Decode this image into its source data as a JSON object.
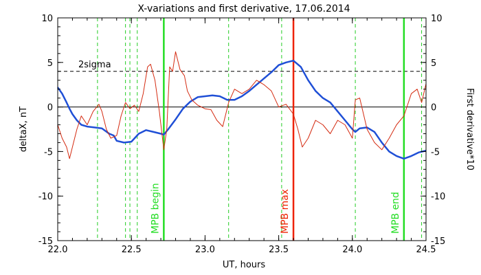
{
  "chart_data": {
    "type": "line",
    "title": "X-variations and first derivative, 17.06.2014",
    "xlabel": "UT, hours",
    "ylabel_left": "deltaX, nT",
    "ylabel_right": "First derivative*10",
    "xlim": [
      22.0,
      24.5
    ],
    "ylim": [
      -15,
      10
    ],
    "x_ticks": [
      "22.0",
      "22.5",
      "23.0",
      "23.5",
      "24.0",
      "24.5"
    ],
    "x_tick_values": [
      22.0,
      22.5,
      23.0,
      23.5,
      24.0,
      24.5
    ],
    "y_ticks": [
      "10",
      "5",
      "0",
      "-5",
      "-10",
      "-15"
    ],
    "y_tick_values": [
      10,
      5,
      0,
      -5,
      -10,
      -15
    ],
    "colors": {
      "deltaX": "#1f4fd6",
      "derivative": "#d42a10",
      "mpb_begin_end": "#22dd22",
      "mpb_max": "#ee2200",
      "dashed_green": "#22cc22"
    },
    "threshold": {
      "label": "2sigma",
      "value": 4
    },
    "zero_line": 0,
    "dashed_green_lines": [
      22.27,
      22.46,
      22.49,
      22.54,
      23.16,
      23.52,
      24.02,
      24.47
    ],
    "vertical_markers": [
      {
        "label": "MPB begin",
        "x": 22.72,
        "kind": "begin_end"
      },
      {
        "label": "MPB max",
        "x": 23.6,
        "kind": "max"
      },
      {
        "label": "MPB end",
        "x": 24.35,
        "kind": "begin_end"
      }
    ],
    "series": [
      {
        "id": "deltaX",
        "x": [
          22.0,
          22.03,
          22.06,
          22.08,
          22.1,
          22.13,
          22.16,
          22.2,
          22.25,
          22.3,
          22.35,
          22.38,
          22.4,
          22.45,
          22.5,
          22.55,
          22.6,
          22.65,
          22.7,
          22.72,
          22.75,
          22.8,
          22.85,
          22.9,
          22.95,
          23.0,
          23.05,
          23.1,
          23.15,
          23.2,
          23.25,
          23.3,
          23.35,
          23.4,
          23.45,
          23.5,
          23.55,
          23.6,
          23.65,
          23.7,
          23.75,
          23.8,
          23.85,
          23.9,
          23.95,
          24.0,
          24.02,
          24.05,
          24.1,
          24.15,
          24.2,
          24.25,
          24.3,
          24.35,
          24.4,
          24.45,
          24.5
        ],
        "y": [
          2.2,
          1.5,
          0.5,
          -0.2,
          -0.8,
          -1.5,
          -2.0,
          -2.2,
          -2.3,
          -2.4,
          -3.0,
          -3.2,
          -3.8,
          -4.0,
          -3.9,
          -3.0,
          -2.6,
          -2.8,
          -3.0,
          -3.1,
          -2.5,
          -1.4,
          -0.2,
          0.6,
          1.1,
          1.2,
          1.3,
          1.2,
          0.8,
          0.8,
          1.2,
          1.8,
          2.5,
          3.2,
          3.9,
          4.7,
          5.0,
          5.2,
          4.5,
          3.0,
          1.8,
          1.0,
          0.5,
          -0.5,
          -1.5,
          -2.5,
          -2.8,
          -2.4,
          -2.3,
          -2.8,
          -4.0,
          -5.0,
          -5.5,
          -5.8,
          -5.5,
          -5.1,
          -4.9
        ]
      },
      {
        "id": "derivative",
        "x": [
          22.0,
          22.03,
          22.06,
          22.08,
          22.1,
          22.13,
          22.16,
          22.2,
          22.24,
          22.28,
          22.3,
          22.33,
          22.36,
          22.4,
          22.43,
          22.46,
          22.49,
          22.52,
          22.55,
          22.58,
          22.61,
          22.63,
          22.66,
          22.69,
          22.72,
          22.74,
          22.76,
          22.78,
          22.8,
          22.83,
          22.86,
          22.88,
          22.91,
          22.95,
          23.0,
          23.04,
          23.08,
          23.12,
          23.16,
          23.2,
          23.25,
          23.3,
          23.35,
          23.4,
          23.45,
          23.5,
          23.55,
          23.6,
          23.63,
          23.66,
          23.7,
          23.75,
          23.8,
          23.85,
          23.9,
          23.95,
          24.0,
          24.02,
          24.05,
          24.1,
          24.15,
          24.2,
          24.25,
          24.3,
          24.35,
          24.4,
          24.44,
          24.47,
          24.5
        ],
        "y": [
          -2.0,
          -3.5,
          -4.5,
          -5.8,
          -4.5,
          -2.5,
          -1.0,
          -2.0,
          -0.5,
          0.3,
          -0.5,
          -2.5,
          -3.5,
          -3.2,
          -1.0,
          0.5,
          -0.2,
          0.2,
          -0.5,
          1.5,
          4.5,
          4.8,
          3.0,
          -0.5,
          -4.8,
          -2.5,
          4.5,
          4.0,
          6.2,
          4.2,
          3.5,
          1.8,
          0.8,
          0.2,
          -0.2,
          -0.3,
          -1.5,
          -2.2,
          0.5,
          2.0,
          1.5,
          2.0,
          3.0,
          2.5,
          1.8,
          0.0,
          0.3,
          -0.8,
          -2.5,
          -4.5,
          -3.5,
          -1.5,
          -2.0,
          -3.0,
          -1.5,
          -2.0,
          -3.5,
          0.8,
          1.0,
          -2.5,
          -4.0,
          -4.8,
          -3.5,
          -2.0,
          -1.0,
          1.5,
          2.0,
          0.5,
          2.6
        ]
      }
    ]
  }
}
